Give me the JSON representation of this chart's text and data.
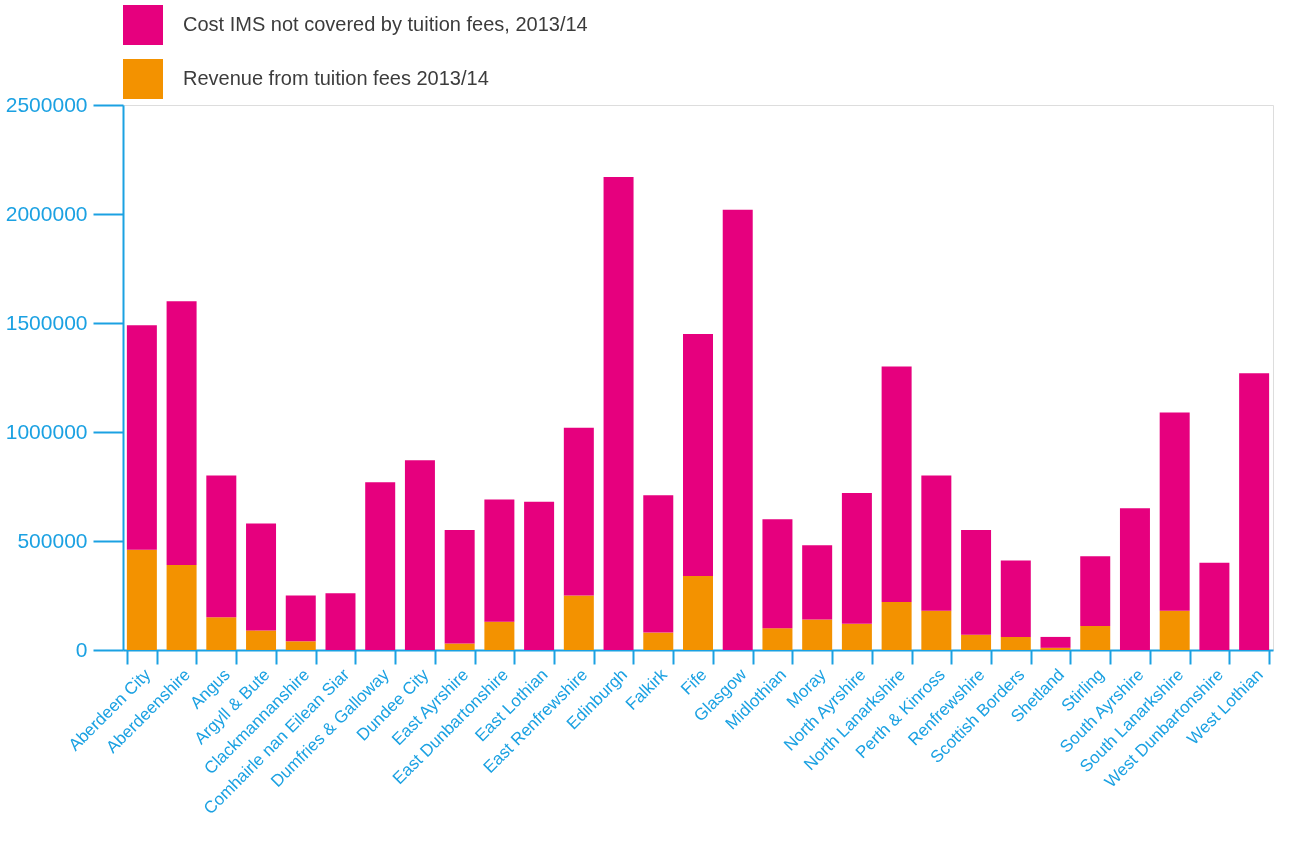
{
  "chart_data": {
    "type": "bar",
    "stacked": true,
    "legend": "top",
    "grid": false,
    "categories": [
      "Aberdeen City",
      "Aberdeenshire",
      "Angus",
      "Argyll & Bute",
      "Clackmannanshire",
      "Comhairle nan Eilean Siar",
      "Dumfries & Galloway",
      "Dundee City",
      "East Ayrshire",
      "East Dunbartonshire",
      "East Lothian",
      "East Renfrewshire",
      "Edinburgh",
      "Falkirk",
      "Fife",
      "Glasgow",
      "Midlothian",
      "Moray",
      "North Ayrshire",
      "North Lanarkshire",
      "Perth & Kinross",
      "Renfrewshire",
      "Scottish Borders",
      "Shetland",
      "Stirling",
      "South Ayrshire",
      "South Lanarkshire",
      "West Dunbartonshire",
      "West Lothian"
    ],
    "series": [
      {
        "name": "Revenue from tuition fees 2013/14",
        "color": "#f39200",
        "values": [
          460000,
          390000,
          150000,
          90000,
          40000,
          0,
          0,
          0,
          30000,
          130000,
          0,
          250000,
          0,
          80000,
          340000,
          0,
          100000,
          140000,
          120000,
          220000,
          180000,
          70000,
          60000,
          10000,
          110000,
          0,
          180000,
          0,
          0
        ]
      },
      {
        "name": "Cost IMS not covered by tuition fees, 2013/14",
        "color": "#e6007e",
        "values": [
          1030000,
          1210000,
          650000,
          490000,
          210000,
          260000,
          770000,
          870000,
          520000,
          560000,
          680000,
          770000,
          2170000,
          630000,
          1110000,
          2020000,
          500000,
          340000,
          600000,
          1080000,
          620000,
          480000,
          350000,
          50000,
          320000,
          650000,
          910000,
          400000,
          1270000
        ]
      }
    ],
    "ylim": [
      0,
      2500000
    ],
    "yticks": [
      0,
      500000,
      1000000,
      1500000,
      2000000,
      2500000
    ]
  }
}
